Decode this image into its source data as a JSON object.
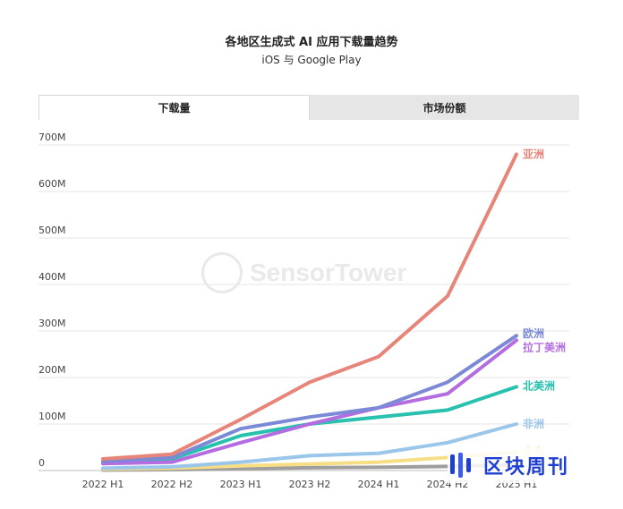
{
  "title": "各地区生成式 AI 应用下载量趋势",
  "subtitle": "iOS 与 Google Play",
  "tabs": [
    {
      "label": "下载量",
      "active": true
    },
    {
      "label": "市场份额",
      "active": false
    }
  ],
  "watermark": {
    "text": "SensorTower"
  },
  "brand": {
    "text": "区块周刊",
    "color": "#1f3fd0"
  },
  "chart_data": {
    "type": "line",
    "title": "各地区生成式 AI 应用下载量趋势",
    "subtitle": "iOS 与 Google Play",
    "categories": [
      "2022 H1",
      "2022 H2",
      "2023 H1",
      "2023 H2",
      "2024 H1",
      "2024 H2",
      "2025 H1"
    ],
    "y_ticks": [
      0,
      100,
      200,
      300,
      400,
      500,
      600,
      700
    ],
    "y_tick_labels": [
      "0",
      "100M",
      "200M",
      "300M",
      "400M",
      "500M",
      "600M",
      "700M"
    ],
    "ylim": [
      0,
      700
    ],
    "unit": "M",
    "grid": true,
    "legend": "labels at line ends",
    "series": [
      {
        "name": "亚洲",
        "color": "#e8857a",
        "values": [
          25,
          35,
          110,
          190,
          245,
          375,
          680
        ]
      },
      {
        "name": "欧洲",
        "color": "#7b89d6",
        "values": [
          20,
          28,
          90,
          115,
          135,
          190,
          290
        ]
      },
      {
        "name": "拉丁美洲",
        "color": "#b36de0",
        "values": [
          15,
          18,
          60,
          100,
          135,
          165,
          280
        ]
      },
      {
        "name": "北美洲",
        "color": "#28c0ae",
        "values": [
          18,
          25,
          75,
          100,
          115,
          130,
          180
        ]
      },
      {
        "name": "非洲",
        "color": "#9ac6ea",
        "values": [
          5,
          8,
          18,
          32,
          37,
          60,
          100
        ]
      },
      {
        "name": "中东",
        "color": "#f7dd84",
        "values": [
          3,
          5,
          10,
          14,
          18,
          28,
          40
        ]
      },
      {
        "name": "",
        "color": "#9e9e9e",
        "values": [
          1,
          2,
          4,
          6,
          7,
          9,
          12
        ]
      }
    ]
  }
}
